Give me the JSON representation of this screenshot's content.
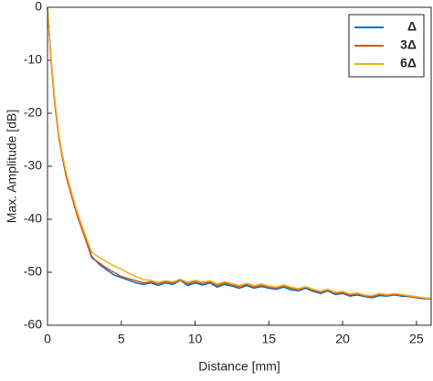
{
  "chart_data": {
    "type": "line",
    "x_label": "Distance [mm]",
    "y_label": "Max. Amplitude [dB]",
    "x": [
      0,
      0.25,
      0.5,
      0.75,
      1,
      1.25,
      1.5,
      2,
      2.5,
      3,
      3.5,
      4,
      4.5,
      5,
      5.5,
      6,
      6.5,
      7,
      7.5,
      8,
      8.5,
      9,
      9.5,
      10,
      10.5,
      11,
      11.5,
      12,
      12.5,
      13,
      13.5,
      14,
      14.5,
      15,
      15.5,
      16,
      16.5,
      17,
      17.5,
      18,
      18.5,
      19,
      19.5,
      20,
      20.5,
      21,
      21.5,
      22,
      22.5,
      23,
      23.5,
      24,
      24.5,
      25,
      25.5,
      26
    ],
    "series": [
      {
        "name": "Δ",
        "color": "#0072bd",
        "values": [
          0,
          -10,
          -18,
          -24,
          -28,
          -31.5,
          -34,
          -39,
          -43,
          -47,
          -48.5,
          -49.5,
          -50.5,
          -51,
          -51.5,
          -52,
          -52.3,
          -52,
          -52.5,
          -52,
          -52.3,
          -51.5,
          -52.5,
          -52,
          -52.4,
          -52,
          -52.8,
          -52.3,
          -52.6,
          -53,
          -52.5,
          -53,
          -52.7,
          -53,
          -53.2,
          -52.8,
          -53.3,
          -53.5,
          -53,
          -53.6,
          -54,
          -53.5,
          -54.2,
          -54,
          -54.5,
          -54.3,
          -54.6,
          -54.8,
          -54.4,
          -54.5,
          -54.3,
          -54.5,
          -54.6,
          -54.8,
          -55,
          -55
        ]
      },
      {
        "name": "3Δ",
        "color": "#d95319",
        "values": [
          0,
          -10.5,
          -18.5,
          -24.3,
          -28.2,
          -31.8,
          -34.3,
          -39.2,
          -43.2,
          -47.3,
          -48.2,
          -49.2,
          -50,
          -50.8,
          -51.2,
          -51.6,
          -52,
          -51.8,
          -52.2,
          -51.8,
          -52,
          -51.4,
          -52.2,
          -51.7,
          -52.1,
          -51.8,
          -52.5,
          -52,
          -52.4,
          -52.7,
          -52.3,
          -52.8,
          -52.4,
          -52.8,
          -53,
          -52.6,
          -53,
          -53.3,
          -52.8,
          -53.4,
          -53.8,
          -53.3,
          -54,
          -53.8,
          -54.3,
          -54,
          -54.5,
          -54.6,
          -54.2,
          -54.4,
          -54.2,
          -54.3,
          -54.6,
          -54.7,
          -54.9,
          -55
        ]
      },
      {
        "name": "6Δ",
        "color": "#edb120",
        "values": [
          0,
          -9.8,
          -17.6,
          -23.6,
          -27.6,
          -31,
          -33.6,
          -38.5,
          -42.5,
          -46.2,
          -47.2,
          -48,
          -48.8,
          -49.4,
          -50.2,
          -50.8,
          -51.4,
          -51.5,
          -51.9,
          -51.6,
          -51.8,
          -51.3,
          -51.9,
          -51.5,
          -51.9,
          -51.6,
          -52.2,
          -51.8,
          -52.1,
          -52.5,
          -52.1,
          -52.5,
          -52.2,
          -52.6,
          -52.8,
          -52.4,
          -52.8,
          -53.1,
          -52.7,
          -53.2,
          -53.6,
          -53.2,
          -53.8,
          -53.6,
          -54.1,
          -53.9,
          -54.3,
          -54.4,
          -54,
          -54.2,
          -54,
          -54.2,
          -54.4,
          -54.6,
          -54.8,
          -54.9
        ]
      }
    ],
    "xlim": [
      0,
      26
    ],
    "xticks": [
      0,
      5,
      10,
      15,
      20,
      25
    ],
    "ylim": [
      -60,
      0
    ],
    "yticks": [
      -60,
      -50,
      -40,
      -30,
      -20,
      -10,
      0
    ],
    "grid": false,
    "legend": "upper-right"
  }
}
